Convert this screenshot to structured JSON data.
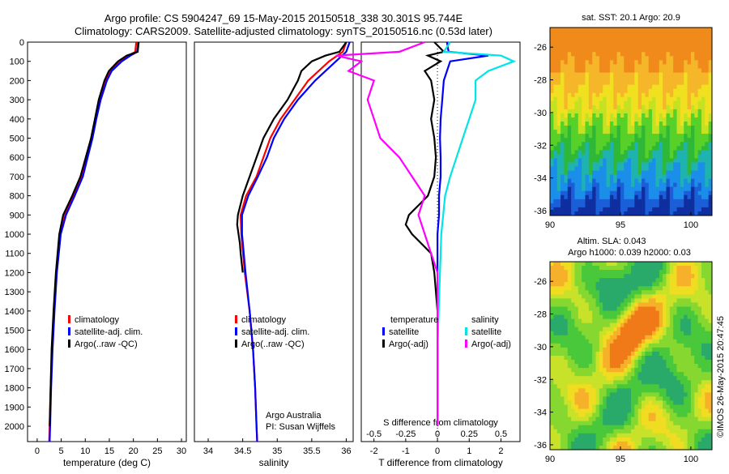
{
  "header": {
    "line1": "Argo profile: CS 5904247_69 15-May-2015 20150518_338 30.301S 95.744E",
    "line2": "Climatology: CARS2009. Satellite-adjusted climatology: synTS_20150516.nc (0.53d later)"
  },
  "side_stamp": "©IMOS 26-May-2015 20:47:45",
  "colors": {
    "climatology": "#ff0000",
    "satellite": "#0000ff",
    "argo": "#000000",
    "sat_salinity": "#00e5e5",
    "argo_salinity": "#ff00ff"
  },
  "chart_data": [
    {
      "type": "line",
      "id": "temperature",
      "xlabel": "temperature (deg C)",
      "ylabel": "",
      "xlim": [
        -2,
        31
      ],
      "ylim": [
        2080,
        0
      ],
      "xticks": [
        0,
        5,
        10,
        15,
        20,
        25,
        30
      ],
      "yticks": [
        0,
        100,
        200,
        300,
        400,
        500,
        600,
        700,
        800,
        900,
        1000,
        1100,
        1200,
        1300,
        1400,
        1500,
        1600,
        1700,
        1800,
        1900,
        2000
      ],
      "legend": [
        "climatology",
        "satellite-adj. clim.",
        "Argo(..raw -QC)"
      ],
      "series": [
        {
          "name": "climatology",
          "color": "#ff0000",
          "depth": [
            0,
            50,
            70,
            100,
            150,
            200,
            300,
            400,
            500,
            600,
            700,
            800,
            900,
            1000,
            1200,
            1400,
            1600,
            1800,
            2000,
            2080
          ],
          "values": [
            20.6,
            20.4,
            19,
            17.2,
            15.2,
            14.3,
            13.1,
            12.2,
            11.4,
            10.3,
            9.3,
            7.6,
            5.8,
            4.8,
            4.0,
            3.5,
            3.1,
            2.8,
            2.6,
            2.5
          ]
        },
        {
          "name": "satellite-adj. clim.",
          "color": "#0000ff",
          "depth": [
            0,
            50,
            70,
            100,
            150,
            200,
            300,
            400,
            500,
            600,
            700,
            800,
            900,
            1000,
            1200,
            1400,
            1600,
            1800,
            2000,
            2080
          ],
          "values": [
            21.0,
            20.8,
            19.4,
            17.6,
            15.5,
            14.5,
            13.2,
            12.3,
            11.5,
            10.5,
            9.5,
            7.8,
            6.0,
            4.9,
            4.1,
            3.6,
            3.2,
            2.9,
            2.7,
            2.6
          ]
        },
        {
          "name": "Argo(..raw -QC)",
          "color": "#000000",
          "depth": [
            0,
            50,
            70,
            100,
            150,
            200,
            300,
            400,
            500,
            600,
            700,
            800,
            900,
            1000,
            1200,
            1400,
            1600,
            1800,
            2000
          ],
          "values": [
            21.1,
            20.9,
            18.6,
            16.8,
            14.9,
            14.0,
            12.8,
            12.0,
            11.2,
            10.1,
            9.0,
            7.3,
            5.4,
            4.6,
            3.9,
            3.4,
            3.0,
            2.8,
            2.6
          ]
        }
      ]
    },
    {
      "type": "line",
      "id": "salinity",
      "xlabel": "salinity",
      "ylabel": "",
      "xlim": [
        33.8,
        36.1
      ],
      "ylim": [
        2080,
        0
      ],
      "xticks": [
        34,
        34.5,
        35,
        35.5,
        36
      ],
      "legend": [
        "climatology",
        "satellite-adj. clim.",
        "Argo(..raw -QC)"
      ],
      "annotation": [
        "Argo Australia",
        "PI: Susan Wijffels"
      ],
      "series": [
        {
          "name": "climatology",
          "color": "#ff0000",
          "depth": [
            0,
            50,
            100,
            150,
            200,
            300,
            400,
            500,
            600,
            700,
            800,
            900,
            1000,
            1200,
            1400,
            1600,
            1800,
            2000,
            2080
          ],
          "values": [
            36.0,
            35.95,
            35.75,
            35.6,
            35.45,
            35.25,
            35.05,
            34.9,
            34.8,
            34.7,
            34.55,
            34.47,
            34.48,
            34.53,
            34.6,
            34.65,
            34.68,
            34.7,
            34.71
          ]
        },
        {
          "name": "satellite-adj. clim.",
          "color": "#0000ff",
          "depth": [
            0,
            50,
            100,
            150,
            200,
            300,
            400,
            500,
            600,
            700,
            800,
            900,
            1000,
            1200,
            1400,
            1600,
            1800,
            2000,
            2080
          ],
          "values": [
            36.05,
            36.0,
            35.85,
            35.7,
            35.55,
            35.3,
            35.1,
            34.95,
            34.85,
            34.72,
            34.58,
            34.49,
            34.49,
            34.54,
            34.6,
            34.65,
            34.68,
            34.7,
            34.71
          ]
        },
        {
          "name": "Argo(..raw -QC)",
          "color": "#000000",
          "depth": [
            0,
            50,
            70,
            100,
            150,
            200,
            300,
            400,
            500,
            600,
            700,
            800,
            900,
            950,
            1000,
            1050,
            1100,
            1200
          ],
          "values": [
            36.0,
            35.9,
            35.7,
            35.5,
            35.35,
            35.3,
            35.15,
            34.95,
            34.8,
            34.7,
            34.6,
            34.5,
            34.43,
            34.42,
            34.44,
            34.46,
            34.47,
            34.5
          ]
        }
      ]
    },
    {
      "type": "line",
      "id": "differences",
      "xlabel": "T difference from climatology",
      "secondary_xlabel": "S difference from climatology",
      "xlim": [
        -2.4,
        2.6
      ],
      "ylim": [
        2080,
        0
      ],
      "xticks": [
        -2,
        -1,
        0,
        1,
        2
      ],
      "secondary_xticks": [
        -0.5,
        -0.25,
        0,
        0.25,
        0.5
      ],
      "legend_temperature_title": "temperature",
      "legend_salinity_title": "salinity",
      "legend": [
        "satellite",
        "Argo(-adj)",
        "satellite",
        "Argo(-adj)"
      ],
      "series": [
        {
          "name": "temperature satellite",
          "color": "#0000ff",
          "depth": [
            0,
            50,
            70,
            100,
            150,
            200,
            300,
            400,
            500,
            600,
            700,
            800,
            900,
            1000,
            1200,
            1400,
            1600,
            1800,
            2000
          ],
          "values": [
            0.3,
            0.35,
            1.6,
            0.4,
            0.3,
            0.2,
            0.15,
            0.1,
            0.08,
            0.1,
            0.1,
            0.05,
            0.05,
            0.0,
            0.0,
            0.0,
            0.0,
            0.0,
            0.0
          ]
        },
        {
          "name": "temperature Argo(-adj)",
          "color": "#000000",
          "depth": [
            0,
            50,
            70,
            100,
            150,
            200,
            300,
            400,
            500,
            600,
            700,
            800,
            850,
            900,
            950,
            1000,
            1050,
            1100,
            1200,
            1400,
            1600,
            1800,
            2000
          ],
          "values": [
            -0.1,
            0.2,
            -0.3,
            0.1,
            -0.4,
            -0.2,
            -0.1,
            -0.2,
            -0.1,
            -0.05,
            -0.1,
            -0.3,
            -0.6,
            -0.9,
            -1.0,
            -0.8,
            -0.5,
            -0.2,
            -0.1,
            0.0,
            0.0,
            0.0,
            0.0
          ]
        },
        {
          "name": "salinity satellite",
          "color": "#00e5e5",
          "depth": [
            0,
            50,
            70,
            100,
            150,
            200,
            300,
            400,
            500,
            600,
            700,
            800,
            1000,
            1200,
            1400,
            1600,
            1800,
            2000
          ],
          "values": [
            0.1,
            0.05,
            0.5,
            0.6,
            0.4,
            0.3,
            0.3,
            0.25,
            0.2,
            0.15,
            0.1,
            0.06,
            0.03,
            0.02,
            0.01,
            0.0,
            0.0,
            0.0
          ]
        },
        {
          "name": "salinity Argo(-adj)",
          "color": "#ff00ff",
          "depth": [
            0,
            50,
            70,
            100,
            150,
            200,
            300,
            400,
            500,
            600,
            700,
            800,
            900,
            1000,
            1100,
            1200,
            1400,
            1600,
            1800,
            2000
          ],
          "values": [
            -0.1,
            -0.3,
            -0.8,
            -0.6,
            -0.7,
            -0.5,
            -0.55,
            -0.5,
            -0.45,
            -0.3,
            -0.2,
            -0.1,
            -0.15,
            -0.1,
            -0.05,
            0.0,
            0.0,
            0.0,
            0.0,
            0.0
          ]
        }
      ]
    },
    {
      "type": "heatmap",
      "id": "sst_map",
      "title": "sat. SST: 20.1  Argo: 20.9",
      "xlim": [
        90,
        101.5
      ],
      "ylim": [
        -36.3,
        -24.8
      ],
      "xticks": [
        90,
        95,
        100
      ],
      "yticks": [
        -26,
        -28,
        -30,
        -32,
        -34,
        -36
      ]
    },
    {
      "type": "heatmap",
      "id": "sla_map",
      "title_line1": "Altim. SLA: 0.043",
      "title_line2": "Argo h1000: 0.039 h2000: 0.03",
      "xlim": [
        90,
        101.5
      ],
      "ylim": [
        -36.3,
        -24.8
      ],
      "xticks": [
        90,
        95,
        100
      ],
      "yticks": [
        -26,
        -28,
        -30,
        -32,
        -34,
        -36
      ]
    }
  ]
}
